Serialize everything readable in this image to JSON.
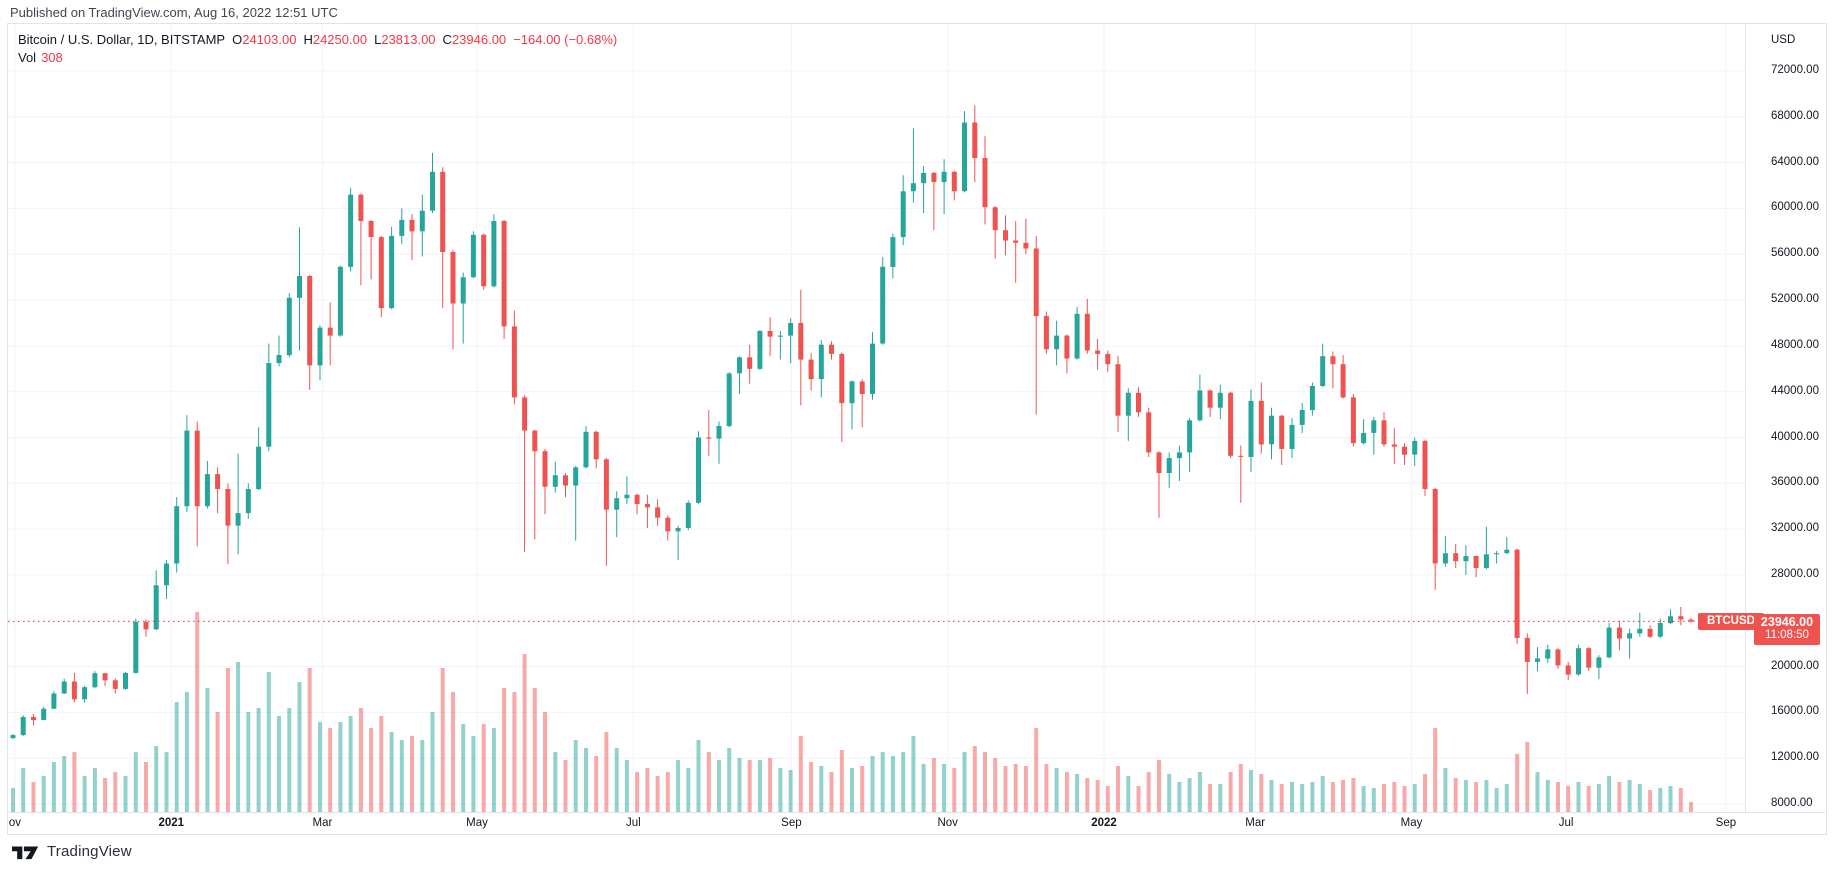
{
  "header": {
    "published": "Published on TradingView.com, Aug 16, 2022 12:51 UTC"
  },
  "legend": {
    "title": "Bitcoin / U.S. Dollar, 1D, BITSTAMP",
    "ohlc": [
      {
        "label": "O",
        "value": "24103.00"
      },
      {
        "label": "H",
        "value": "24250.00"
      },
      {
        "label": "L",
        "value": "23813.00"
      },
      {
        "label": "C",
        "value": "23946.00"
      }
    ],
    "change": "−164.00 (−0.68%)",
    "vol_label": "Vol",
    "vol_value": "308"
  },
  "last_price": {
    "symbol": "BTCUSD",
    "price": "23946.00",
    "countdown": "11:08:50",
    "value": 23946
  },
  "price_scale": {
    "currency": "USD",
    "labels": [
      "72000.00",
      "68000.00",
      "64000.00",
      "60000.00",
      "56000.00",
      "52000.00",
      "48000.00",
      "44000.00",
      "40000.00",
      "36000.00",
      "32000.00",
      "28000.00",
      "20000.00",
      "16000.00",
      "12000.00",
      "8000.00"
    ]
  },
  "time_scale": {
    "ticks": [
      {
        "label": "ov",
        "x": 0.004,
        "bold": false
      },
      {
        "label": "2021",
        "x": 0.094,
        "bold": true
      },
      {
        "label": "Mar",
        "x": 0.181,
        "bold": false
      },
      {
        "label": "May",
        "x": 0.27,
        "bold": false
      },
      {
        "label": "Jul",
        "x": 0.36,
        "bold": false
      },
      {
        "label": "Sep",
        "x": 0.451,
        "bold": false
      },
      {
        "label": "Nov",
        "x": 0.541,
        "bold": false
      },
      {
        "label": "2022",
        "x": 0.631,
        "bold": true
      },
      {
        "label": "Mar",
        "x": 0.718,
        "bold": false
      },
      {
        "label": "May",
        "x": 0.808,
        "bold": false
      },
      {
        "label": "Jul",
        "x": 0.897,
        "bold": false
      },
      {
        "label": "Sep",
        "x": 0.989,
        "bold": false
      }
    ]
  },
  "footer": {
    "brand": "TradingView"
  },
  "colors": {
    "up": "#26a69a",
    "down": "#ef5350",
    "accent_red": "#f23645",
    "vol_up": "rgba(38,166,154,0.5)",
    "vol_down": "rgba(239,83,80,0.5)",
    "grid": "#f0f3fa",
    "axis_border": "#e0e3eb",
    "text": "#131722"
  },
  "chart_data": {
    "type": "candlestick",
    "title": "Bitcoin / U.S. Dollar",
    "symbol": "BTCUSD",
    "exchange": "BITSTAMP",
    "interval": "1D",
    "x_start": "2020-11-01",
    "x_step_days": 4,
    "x_end": "2022-08-16",
    "price_axis": {
      "min": 8000,
      "max": 72000,
      "step": 4000
    },
    "volume_pane": {
      "relative_max": 1.0
    },
    "last_close_line": 23946,
    "candles_format": [
      "open",
      "high",
      "low",
      "close",
      "relative_volume"
    ],
    "candles": [
      [
        13760,
        14100,
        13650,
        14020,
        0.12
      ],
      [
        14020,
        15750,
        13950,
        15600,
        0.22
      ],
      [
        15600,
        15850,
        14850,
        15330,
        0.15
      ],
      [
        15330,
        16480,
        15300,
        16320,
        0.18
      ],
      [
        16320,
        17850,
        16300,
        17650,
        0.25
      ],
      [
        17650,
        18950,
        17600,
        18700,
        0.28
      ],
      [
        18700,
        19450,
        16900,
        17150,
        0.3
      ],
      [
        17150,
        18350,
        16850,
        18200,
        0.18
      ],
      [
        18200,
        19600,
        18100,
        19420,
        0.22
      ],
      [
        19420,
        19450,
        18300,
        18800,
        0.17
      ],
      [
        18800,
        18950,
        17650,
        18050,
        0.2
      ],
      [
        18050,
        19550,
        17950,
        19450,
        0.18
      ],
      [
        19450,
        24200,
        19400,
        23900,
        0.3
      ],
      [
        23900,
        24100,
        22600,
        23250,
        0.25
      ],
      [
        23250,
        28400,
        23200,
        27100,
        0.33
      ],
      [
        27100,
        29300,
        25900,
        29000,
        0.3
      ],
      [
        29000,
        34800,
        28200,
        34000,
        0.55
      ],
      [
        34000,
        41950,
        33500,
        40600,
        0.6
      ],
      [
        40600,
        41400,
        30500,
        34000,
        1.0
      ],
      [
        34000,
        37950,
        33800,
        36800,
        0.62
      ],
      [
        36800,
        37400,
        33400,
        35500,
        0.5
      ],
      [
        35500,
        36000,
        28950,
        32300,
        0.72
      ],
      [
        32300,
        38600,
        29800,
        33400,
        0.75
      ],
      [
        33400,
        36000,
        32900,
        35500,
        0.5
      ],
      [
        35500,
        40900,
        35400,
        39200,
        0.52
      ],
      [
        39200,
        48200,
        38800,
        46500,
        0.7
      ],
      [
        46500,
        48900,
        46200,
        47200,
        0.48
      ],
      [
        47200,
        52600,
        47000,
        52200,
        0.52
      ],
      [
        52200,
        58350,
        47600,
        54100,
        0.65
      ],
      [
        54100,
        54200,
        44150,
        46300,
        0.72
      ],
      [
        46300,
        49800,
        45000,
        49600,
        0.45
      ],
      [
        49600,
        51800,
        46300,
        48900,
        0.42
      ],
      [
        48900,
        55000,
        48800,
        54900,
        0.45
      ],
      [
        54900,
        61800,
        54500,
        61200,
        0.48
      ],
      [
        61200,
        61300,
        53300,
        58900,
        0.52
      ],
      [
        58900,
        59000,
        53800,
        57500,
        0.42
      ],
      [
        57500,
        57600,
        50500,
        51300,
        0.48
      ],
      [
        51300,
        58400,
        51200,
        57600,
        0.4
      ],
      [
        57600,
        60000,
        56900,
        59000,
        0.36
      ],
      [
        59000,
        59500,
        55500,
        58000,
        0.38
      ],
      [
        58000,
        61200,
        55800,
        59800,
        0.36
      ],
      [
        59800,
        64850,
        59600,
        63200,
        0.5
      ],
      [
        63200,
        63600,
        51300,
        56200,
        0.72
      ],
      [
        56200,
        56400,
        47700,
        51700,
        0.6
      ],
      [
        51700,
        54400,
        48200,
        54000,
        0.44
      ],
      [
        54000,
        58000,
        53900,
        57700,
        0.38
      ],
      [
        57700,
        57800,
        52900,
        53200,
        0.44
      ],
      [
        53200,
        59500,
        53100,
        58900,
        0.42
      ],
      [
        58900,
        59000,
        48600,
        49700,
        0.62
      ],
      [
        49700,
        51100,
        42900,
        43500,
        0.6
      ],
      [
        43500,
        43700,
        30000,
        40600,
        0.79
      ],
      [
        40600,
        40700,
        31100,
        38800,
        0.62
      ],
      [
        38800,
        39000,
        33300,
        35700,
        0.5
      ],
      [
        35700,
        37900,
        35200,
        36700,
        0.3
      ],
      [
        36700,
        36900,
        34800,
        35800,
        0.26
      ],
      [
        35800,
        37500,
        31000,
        37400,
        0.36
      ],
      [
        37400,
        41000,
        37300,
        40500,
        0.32
      ],
      [
        40500,
        40600,
        37300,
        38100,
        0.28
      ],
      [
        38100,
        38200,
        28800,
        33700,
        0.4
      ],
      [
        33700,
        35300,
        31300,
        34700,
        0.32
      ],
      [
        34700,
        36600,
        34200,
        35000,
        0.26
      ],
      [
        35000,
        35100,
        33300,
        34200,
        0.2
      ],
      [
        34200,
        35000,
        32100,
        33900,
        0.22
      ],
      [
        33900,
        34600,
        32300,
        33000,
        0.18
      ],
      [
        33000,
        33200,
        31000,
        31800,
        0.2
      ],
      [
        31800,
        32300,
        29300,
        32100,
        0.26
      ],
      [
        32100,
        34500,
        31900,
        34300,
        0.22
      ],
      [
        34300,
        40550,
        34200,
        40000,
        0.36
      ],
      [
        40000,
        42400,
        38400,
        39900,
        0.3
      ],
      [
        39900,
        41400,
        37700,
        41000,
        0.26
      ],
      [
        41000,
        45700,
        40900,
        45600,
        0.32
      ],
      [
        45600,
        47100,
        43800,
        47000,
        0.27
      ],
      [
        47000,
        48100,
        44700,
        46000,
        0.26
      ],
      [
        46000,
        49400,
        45900,
        49300,
        0.26
      ],
      [
        49300,
        50500,
        47100,
        48800,
        0.27
      ],
      [
        48800,
        49300,
        46800,
        48900,
        0.22
      ],
      [
        48900,
        50400,
        46500,
        50000,
        0.21
      ],
      [
        50000,
        52900,
        42800,
        46800,
        0.38
      ],
      [
        46800,
        47400,
        44100,
        45100,
        0.25
      ],
      [
        45100,
        48500,
        43500,
        48100,
        0.23
      ],
      [
        48100,
        48400,
        46800,
        47300,
        0.2
      ],
      [
        47300,
        47400,
        39600,
        43000,
        0.31
      ],
      [
        43000,
        45000,
        40700,
        44900,
        0.22
      ],
      [
        44900,
        45100,
        40900,
        43800,
        0.23
      ],
      [
        43800,
        49200,
        43300,
        48200,
        0.28
      ],
      [
        48200,
        55750,
        48100,
        54900,
        0.3
      ],
      [
        54900,
        57800,
        53900,
        57500,
        0.28
      ],
      [
        57500,
        62900,
        56800,
        61500,
        0.3
      ],
      [
        61500,
        67000,
        60500,
        62200,
        0.38
      ],
      [
        62200,
        63700,
        59600,
        63100,
        0.24
      ],
      [
        63100,
        63200,
        58100,
        62300,
        0.27
      ],
      [
        62300,
        64300,
        59500,
        63200,
        0.24
      ],
      [
        63200,
        63300,
        60700,
        61500,
        0.22
      ],
      [
        61500,
        68500,
        61400,
        67500,
        0.3
      ],
      [
        67500,
        69000,
        62300,
        64400,
        0.33
      ],
      [
        64400,
        66300,
        58600,
        60100,
        0.3
      ],
      [
        60100,
        60200,
        55600,
        58100,
        0.27
      ],
      [
        58100,
        59400,
        55900,
        57200,
        0.23
      ],
      [
        57200,
        58900,
        53500,
        57000,
        0.24
      ],
      [
        57000,
        59100,
        56000,
        56500,
        0.23
      ],
      [
        56500,
        57600,
        42000,
        50600,
        0.42
      ],
      [
        50600,
        51000,
        47300,
        47700,
        0.24
      ],
      [
        47700,
        50200,
        46300,
        48900,
        0.22
      ],
      [
        48900,
        49000,
        45600,
        46900,
        0.2
      ],
      [
        46900,
        51400,
        46800,
        50800,
        0.19
      ],
      [
        50800,
        52100,
        47300,
        47600,
        0.17
      ],
      [
        47600,
        48600,
        45900,
        47300,
        0.16
      ],
      [
        47300,
        47600,
        45700,
        46400,
        0.13
      ],
      [
        46400,
        47100,
        40500,
        41900,
        0.23
      ],
      [
        41900,
        44300,
        39700,
        43900,
        0.18
      ],
      [
        43900,
        44400,
        41800,
        42200,
        0.13
      ],
      [
        42200,
        42600,
        38300,
        38700,
        0.2
      ],
      [
        38700,
        38800,
        33000,
        36900,
        0.26
      ],
      [
        36900,
        38700,
        35600,
        38200,
        0.19
      ],
      [
        38200,
        39300,
        36200,
        38700,
        0.15
      ],
      [
        38700,
        41700,
        37000,
        41500,
        0.17
      ],
      [
        41500,
        45500,
        41400,
        44100,
        0.2
      ],
      [
        44100,
        44200,
        41800,
        42600,
        0.14
      ],
      [
        42600,
        44600,
        41600,
        43900,
        0.14
      ],
      [
        43900,
        44000,
        38200,
        38400,
        0.2
      ],
      [
        38400,
        39300,
        34300,
        38300,
        0.24
      ],
      [
        38300,
        44200,
        37000,
        43200,
        0.21
      ],
      [
        43200,
        44800,
        38600,
        39400,
        0.19
      ],
      [
        39400,
        42600,
        38100,
        41900,
        0.16
      ],
      [
        41900,
        42000,
        37600,
        39000,
        0.14
      ],
      [
        39000,
        41700,
        38200,
        41100,
        0.15
      ],
      [
        41100,
        43000,
        40400,
        42400,
        0.14
      ],
      [
        42400,
        44800,
        41900,
        44500,
        0.15
      ],
      [
        44500,
        48200,
        44400,
        47100,
        0.18
      ],
      [
        47100,
        47500,
        44300,
        46400,
        0.15
      ],
      [
        46400,
        47200,
        43400,
        43500,
        0.16
      ],
      [
        43500,
        43800,
        39200,
        39500,
        0.17
      ],
      [
        39500,
        41600,
        39400,
        40400,
        0.13
      ],
      [
        40400,
        41800,
        38500,
        41500,
        0.12
      ],
      [
        41500,
        42200,
        39200,
        39400,
        0.14
      ],
      [
        39400,
        40800,
        37700,
        39200,
        0.15
      ],
      [
        39200,
        39500,
        37600,
        38500,
        0.13
      ],
      [
        38500,
        40000,
        37500,
        39700,
        0.14
      ],
      [
        39700,
        39800,
        34900,
        35500,
        0.19
      ],
      [
        35500,
        35600,
        26700,
        29000,
        0.42
      ],
      [
        29000,
        31400,
        28700,
        29900,
        0.22
      ],
      [
        29900,
        30700,
        28600,
        29200,
        0.17
      ],
      [
        29200,
        30600,
        28000,
        29650,
        0.16
      ],
      [
        29650,
        29700,
        27800,
        28600,
        0.15
      ],
      [
        28600,
        32200,
        28500,
        29800,
        0.16
      ],
      [
        29800,
        30100,
        29000,
        29900,
        0.12
      ],
      [
        29900,
        31300,
        29800,
        30200,
        0.14
      ],
      [
        30200,
        30300,
        22000,
        22500,
        0.29
      ],
      [
        22500,
        22900,
        17600,
        20400,
        0.35
      ],
      [
        20400,
        21700,
        19600,
        20700,
        0.2
      ],
      [
        20700,
        21900,
        20300,
        21500,
        0.16
      ],
      [
        21500,
        21600,
        19800,
        20100,
        0.15
      ],
      [
        20100,
        20400,
        18800,
        19300,
        0.13
      ],
      [
        19300,
        21900,
        19200,
        21600,
        0.15
      ],
      [
        21600,
        21700,
        19600,
        19900,
        0.13
      ],
      [
        19900,
        21000,
        18900,
        20800,
        0.14
      ],
      [
        20800,
        23800,
        20700,
        23400,
        0.18
      ],
      [
        23400,
        24000,
        21400,
        22450,
        0.15
      ],
      [
        22450,
        23300,
        20700,
        22900,
        0.16
      ],
      [
        22900,
        24700,
        22600,
        23300,
        0.14
      ],
      [
        23300,
        23600,
        22500,
        22600,
        0.11
      ],
      [
        22600,
        24200,
        22500,
        23800,
        0.12
      ],
      [
        23800,
        25000,
        23700,
        24400,
        0.13
      ],
      [
        24400,
        25200,
        23600,
        24100,
        0.12
      ],
      [
        24103,
        24250,
        23813,
        23946,
        0.05
      ]
    ]
  }
}
